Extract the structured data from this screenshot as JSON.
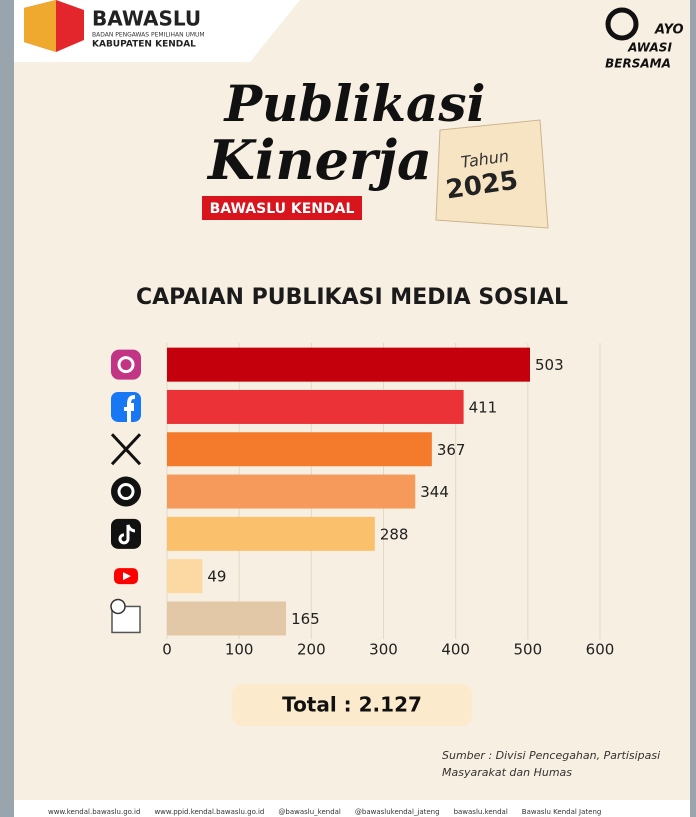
{
  "header": {
    "org": "BAWASLU",
    "org_sub1": "BADAN PENGAWAS PEMILIHAN UMUM",
    "org_sub2": "KABUPATEN KENDAL",
    "headline1": "Publikasi",
    "headline2": "Kinerja",
    "badge": "BAWASLU KENDAL",
    "tag1": "Tahun",
    "tag2": "2025",
    "slogan1": "AYO",
    "slogan2": "AWASI",
    "slogan3": "BERSAMA"
  },
  "chart_data": {
    "type": "hbar",
    "title": "CAPAIAN PUBLIKASI MEDIA SOSIAL",
    "categories": [
      null,
      null,
      null,
      null,
      null,
      null,
      null
    ],
    "values": [
      503,
      411,
      367,
      344,
      288,
      49,
      165
    ],
    "colors": [
      "#c4000d",
      "#ea3237",
      "#f47a2c",
      "#f69a5c",
      "#fbc06c",
      "#fcd8a2",
      "#e3c8a8"
    ],
    "xlim": [
      0,
      600
    ],
    "xticks": [
      0,
      100,
      200,
      300,
      400,
      500,
      600
    ],
    "grid": true
  },
  "total": "Total : 2.127",
  "source": [
    "Sumber : Divisi Pencegahan, Partisipasi",
    "Masyarakat dan Humas"
  ],
  "footer": [
    "www.kendal.bawaslu.go.id",
    "www.ppid.kendal.bawaslu.go.id",
    "@bawaslu_kendal",
    "@bawaslukendal_jateng",
    "bawaslu.kendal",
    "Bawaslu Kendal Jateng"
  ]
}
